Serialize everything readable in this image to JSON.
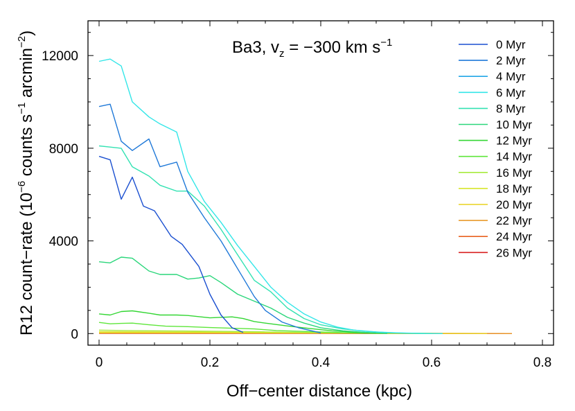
{
  "chart_data": {
    "type": "line",
    "annotation": {
      "prefix": "Ba3, v",
      "sub": "z",
      "mid": " = −300 km s",
      "sup": "−1"
    },
    "xlabel": "Off−center distance (kpc)",
    "ylabel": {
      "base": "R12 count−rate (10",
      "sup1": "−6",
      "mid": " counts s",
      "sup2": "−1",
      "mid2": " arcmin",
      "sup3": "−2",
      "end": ")"
    },
    "xlim": [
      -0.02,
      0.82
    ],
    "ylim": [
      -500,
      13500
    ],
    "xticks": [
      {
        "v": 0,
        "label": "0"
      },
      {
        "v": 0.2,
        "label": "0.2"
      },
      {
        "v": 0.4,
        "label": "0.4"
      },
      {
        "v": 0.6,
        "label": "0.6"
      },
      {
        "v": 0.8,
        "label": "0.8"
      }
    ],
    "yticks": [
      {
        "v": 0,
        "label": "0"
      },
      {
        "v": 4000,
        "label": "4000"
      },
      {
        "v": 8000,
        "label": "8000"
      },
      {
        "v": 12000,
        "label": "12000"
      }
    ],
    "legend_position": "top-right",
    "series": [
      {
        "name": "0 Myr",
        "color": "#1a4fd0",
        "x": [
          0,
          0.02,
          0.04,
          0.06,
          0.08,
          0.1,
          0.13,
          0.15,
          0.18,
          0.2,
          0.22,
          0.24,
          0.26
        ],
        "y": [
          7650,
          7500,
          5800,
          6750,
          5500,
          5300,
          4200,
          3850,
          2900,
          1700,
          800,
          250,
          50
        ]
      },
      {
        "name": "2 Myr",
        "color": "#1e78d8",
        "x": [
          0,
          0.02,
          0.04,
          0.06,
          0.09,
          0.11,
          0.14,
          0.16,
          0.19,
          0.22,
          0.25,
          0.28,
          0.3,
          0.33,
          0.36,
          0.4
        ],
        "y": [
          9800,
          9900,
          8300,
          7900,
          8400,
          7200,
          7400,
          6100,
          5000,
          4000,
          2800,
          1600,
          1000,
          500,
          250,
          30
        ]
      },
      {
        "name": "4 Myr",
        "color": "#22a6e6",
        "x": [],
        "y": []
      },
      {
        "name": "6 Myr",
        "color": "#33e6e8",
        "x": [
          0,
          0.02,
          0.04,
          0.06,
          0.09,
          0.11,
          0.14,
          0.16,
          0.19,
          0.22,
          0.25,
          0.28,
          0.31,
          0.34,
          0.37,
          0.4,
          0.43,
          0.46,
          0.5,
          0.54,
          0.58,
          0.62
        ],
        "y": [
          11750,
          11850,
          11550,
          10000,
          9350,
          9050,
          8700,
          7000,
          5700,
          4800,
          3800,
          2900,
          2000,
          1350,
          850,
          500,
          280,
          150,
          70,
          30,
          10,
          0
        ]
      },
      {
        "name": "8 Myr",
        "color": "#32e2b2",
        "x": [
          0,
          0.02,
          0.04,
          0.06,
          0.09,
          0.11,
          0.14,
          0.16,
          0.19,
          0.22,
          0.25,
          0.28,
          0.31,
          0.34,
          0.37,
          0.4,
          0.44,
          0.48,
          0.52,
          0.56,
          0.6
        ],
        "y": [
          8100,
          8050,
          8000,
          7200,
          6800,
          6400,
          6150,
          6150,
          5500,
          4500,
          3400,
          2300,
          1800,
          1100,
          650,
          380,
          200,
          100,
          40,
          15,
          0
        ]
      },
      {
        "name": "10 Myr",
        "color": "#2ad67a",
        "x": [
          0,
          0.02,
          0.04,
          0.06,
          0.09,
          0.11,
          0.14,
          0.16,
          0.18,
          0.2,
          0.22,
          0.25,
          0.28,
          0.31,
          0.34,
          0.37,
          0.4,
          0.44,
          0.48,
          0.52
        ],
        "y": [
          3100,
          3050,
          3300,
          3250,
          2700,
          2550,
          2550,
          2350,
          2400,
          2500,
          2200,
          1700,
          1400,
          1100,
          700,
          450,
          250,
          120,
          50,
          10
        ]
      },
      {
        "name": "12 Myr",
        "color": "#33d633",
        "x": [
          0,
          0.02,
          0.04,
          0.06,
          0.09,
          0.11,
          0.14,
          0.16,
          0.2,
          0.24,
          0.26,
          0.28,
          0.3,
          0.34,
          0.38,
          0.42,
          0.46,
          0.5
        ],
        "y": [
          850,
          800,
          950,
          980,
          880,
          800,
          800,
          780,
          680,
          720,
          650,
          520,
          450,
          330,
          220,
          120,
          60,
          20
        ]
      },
      {
        "name": "14 Myr",
        "color": "#5ee63a",
        "x": [
          0,
          0.02,
          0.04,
          0.06,
          0.09,
          0.12,
          0.16,
          0.2,
          0.24,
          0.28,
          0.32,
          0.36,
          0.4,
          0.44,
          0.48,
          0.52
        ],
        "y": [
          480,
          420,
          440,
          450,
          380,
          320,
          300,
          260,
          230,
          200,
          130,
          100,
          70,
          40,
          15,
          5
        ]
      },
      {
        "name": "16 Myr",
        "color": "#a6ea3c",
        "x": [
          0,
          0.05,
          0.1,
          0.15,
          0.2,
          0.25,
          0.3,
          0.35,
          0.4,
          0.45,
          0.5,
          0.55,
          0.6
        ],
        "y": [
          150,
          130,
          120,
          110,
          100,
          90,
          70,
          55,
          40,
          25,
          10,
          5,
          0
        ]
      },
      {
        "name": "18 Myr",
        "color": "#d7e62a",
        "x": [
          0,
          0.1,
          0.2,
          0.3,
          0.4,
          0.5,
          0.6
        ],
        "y": [
          80,
          70,
          60,
          50,
          35,
          20,
          5
        ]
      },
      {
        "name": "20 Myr",
        "color": "#e8d21e",
        "x": [
          0,
          0.1,
          0.2,
          0.3,
          0.4,
          0.5,
          0.6,
          0.7
        ],
        "y": [
          40,
          38,
          35,
          30,
          25,
          15,
          8,
          3
        ]
      },
      {
        "name": "22 Myr",
        "color": "#e89a2a",
        "x": [
          0,
          0.2,
          0.4,
          0.6,
          0.745
        ],
        "y": [
          25,
          20,
          15,
          8,
          3
        ]
      },
      {
        "name": "24 Myr",
        "color": "#e8601e",
        "x": [
          0,
          0.2,
          0.4,
          0.6,
          0.745
        ],
        "y": [
          15,
          12,
          10,
          6,
          3
        ]
      },
      {
        "name": "26 Myr",
        "color": "#d81e1e",
        "x": [
          0,
          0.2,
          0.4,
          0.6,
          0.745
        ],
        "y": [
          10,
          8,
          6,
          4,
          2
        ]
      }
    ]
  }
}
